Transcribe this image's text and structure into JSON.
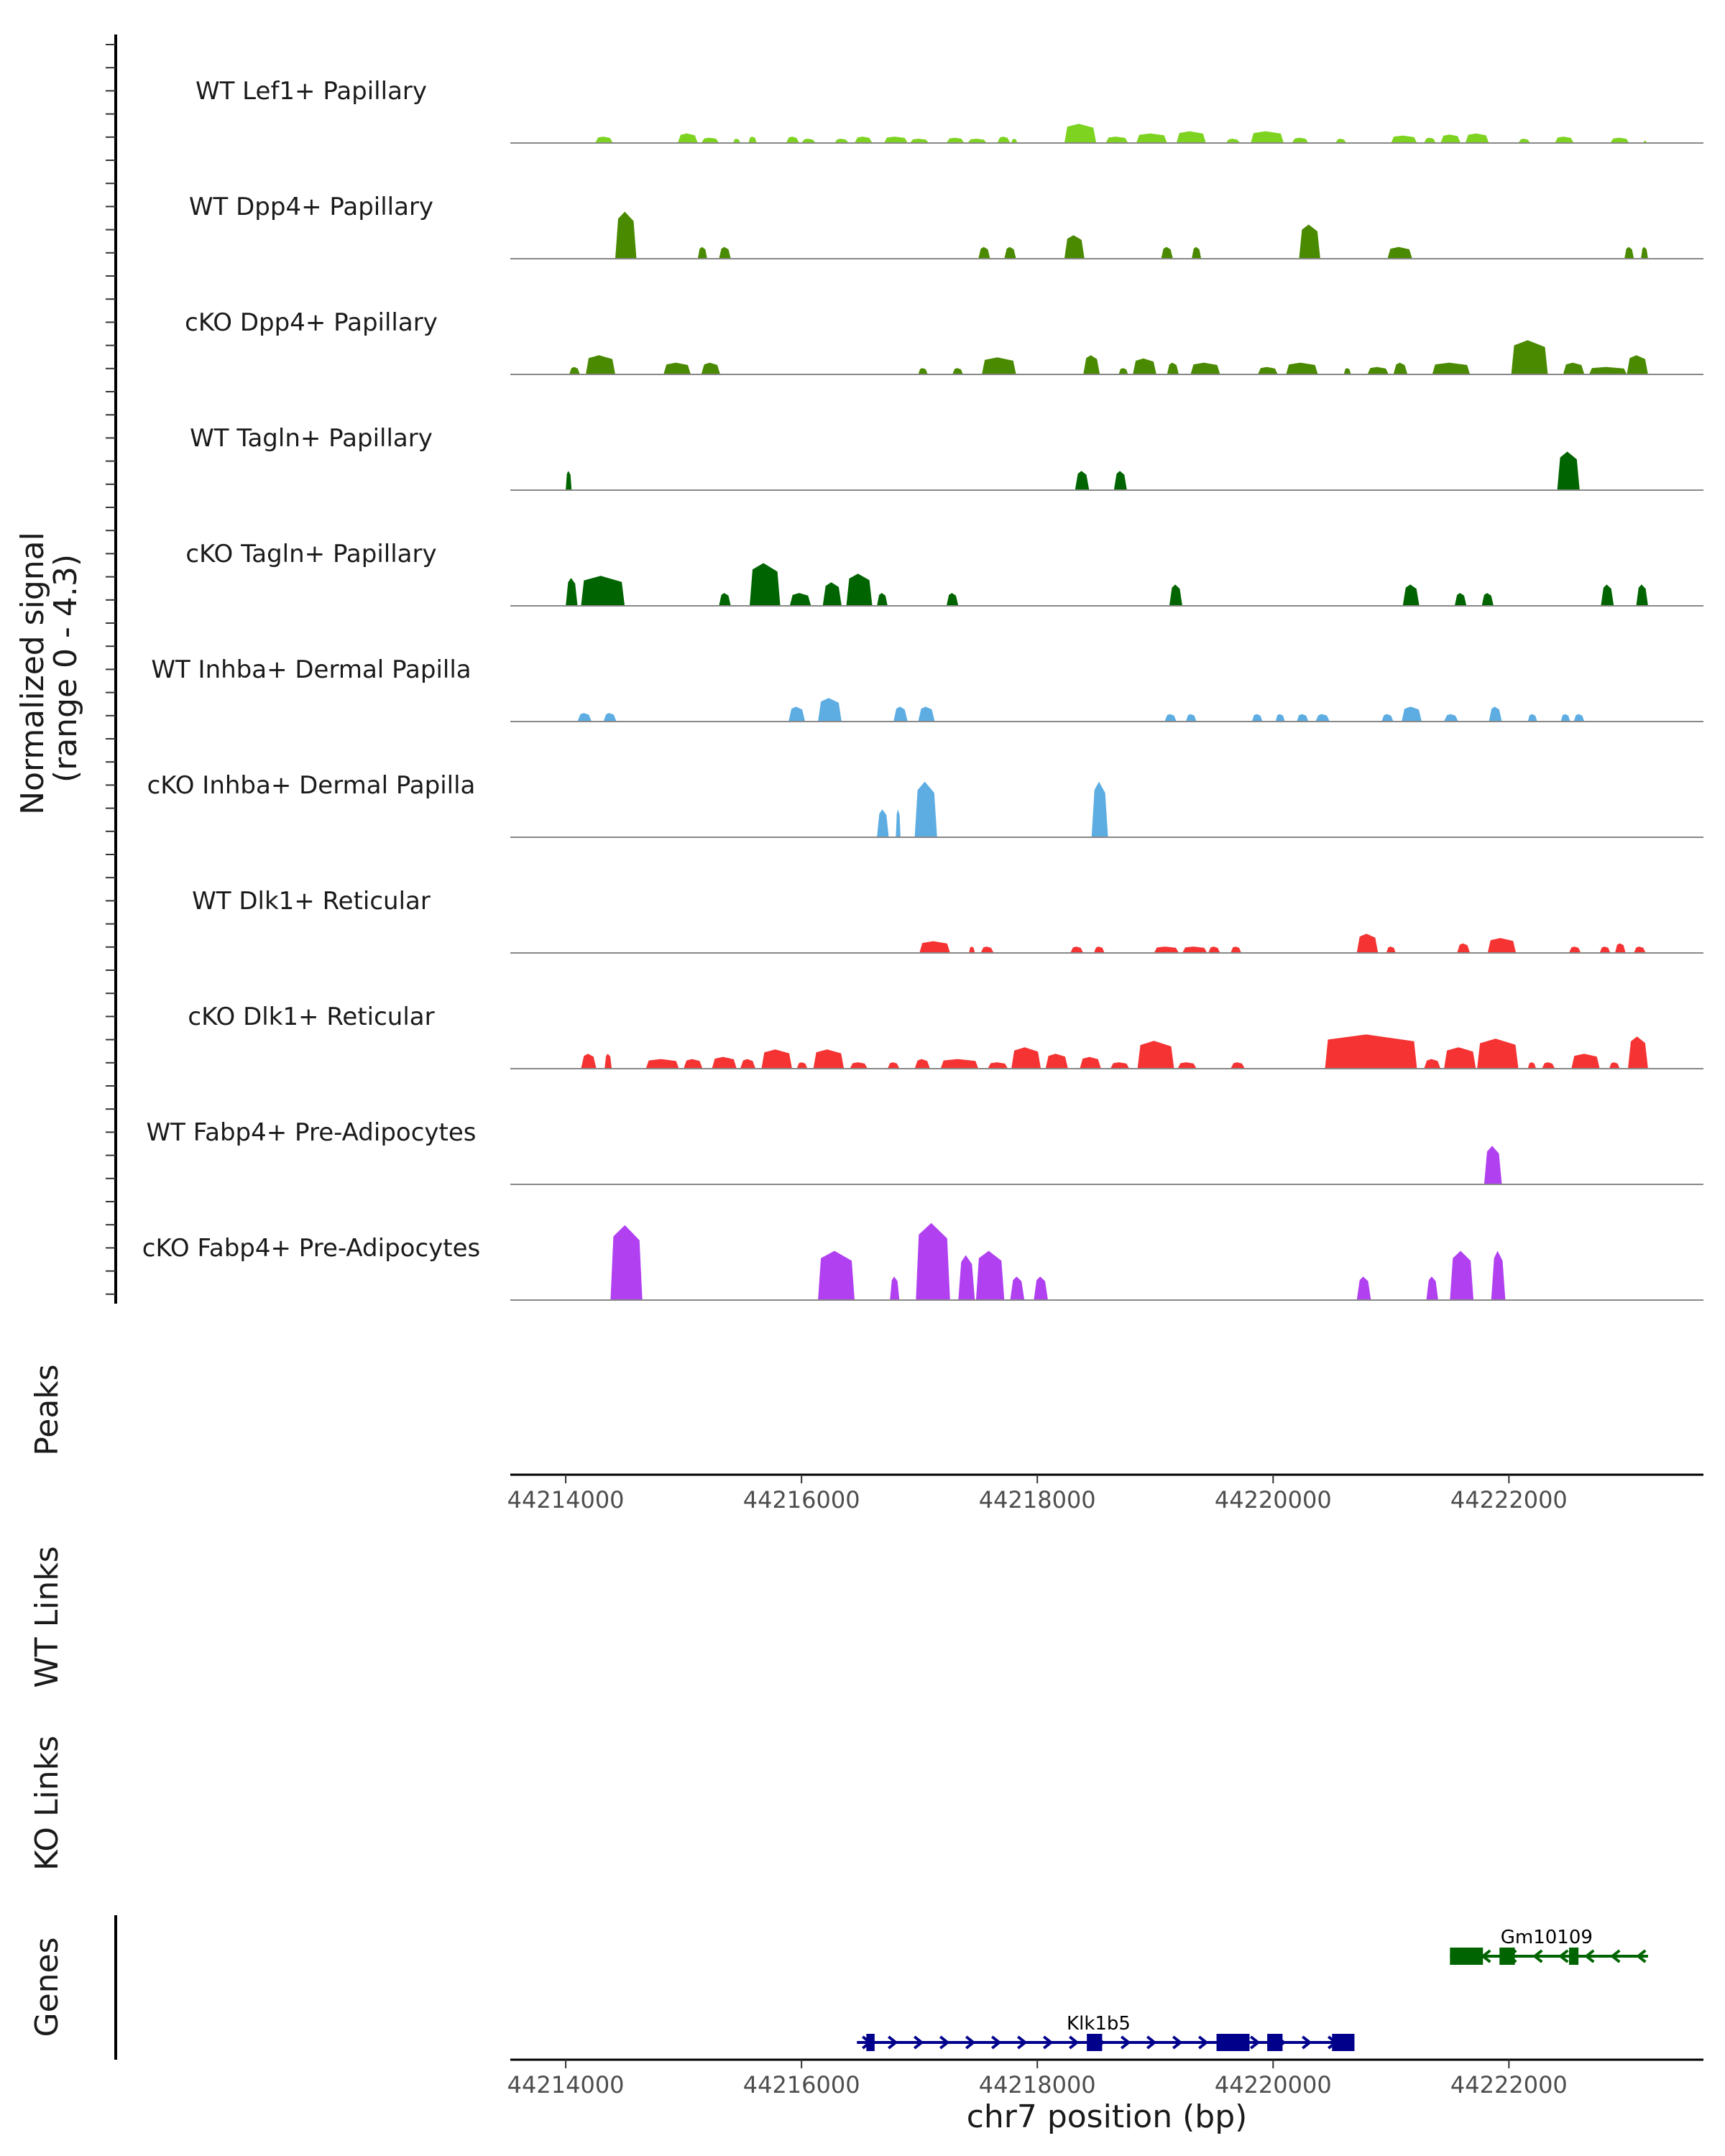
{
  "chart_data": {
    "type": "area",
    "title": "",
    "ylabel": "Normalized signal\n(range 0 - 4.3)",
    "ylabel_lines": [
      "Normalized signal",
      "(range 0 - 4.3)"
    ],
    "ylim": [
      0,
      4.3
    ],
    "xlabel": "chr7 position (bp)",
    "xlim": [
      44213530,
      44223650
    ],
    "x_ticks": [
      44214000,
      44216000,
      44218000,
      44220000,
      44222000
    ],
    "x_tick_labels": [
      "44214000",
      "44216000",
      "44218000",
      "44220000",
      "44222000"
    ],
    "panel_labels": {
      "peaks": "Peaks",
      "wt_links": "WT Links",
      "ko_links": "KO Links",
      "genes": "Genes"
    },
    "series": [
      {
        "name": "WT Lef1+ Papillary",
        "color": "#7ED321",
        "segments": [
          [
            44214250,
            44214400,
            0.3
          ],
          [
            44214950,
            44215120,
            0.45
          ],
          [
            44215150,
            44215300,
            0.25
          ],
          [
            44215420,
            44215480,
            0.2
          ],
          [
            44215550,
            44215620,
            0.3
          ],
          [
            44215870,
            44215980,
            0.3
          ],
          [
            44216000,
            44216120,
            0.2
          ],
          [
            44216280,
            44216400,
            0.2
          ],
          [
            44216450,
            44216600,
            0.3
          ],
          [
            44216700,
            44216900,
            0.3
          ],
          [
            44216920,
            44217080,
            0.2
          ],
          [
            44217230,
            44217380,
            0.25
          ],
          [
            44217410,
            44217570,
            0.2
          ],
          [
            44217660,
            44217770,
            0.3
          ],
          [
            44217780,
            44217830,
            0.2
          ],
          [
            44218230,
            44218500,
            0.9
          ],
          [
            44218580,
            44218770,
            0.3
          ],
          [
            44218840,
            44219100,
            0.45
          ],
          [
            44219180,
            44219430,
            0.55
          ],
          [
            44219600,
            44219720,
            0.2
          ],
          [
            44219810,
            44220090,
            0.55
          ],
          [
            44220160,
            44220300,
            0.25
          ],
          [
            44220530,
            44220620,
            0.2
          ],
          [
            44221000,
            44221220,
            0.35
          ],
          [
            44221280,
            44221380,
            0.25
          ],
          [
            44221420,
            44221590,
            0.4
          ],
          [
            44221630,
            44221830,
            0.45
          ],
          [
            44222080,
            44222180,
            0.2
          ],
          [
            44222390,
            44222550,
            0.3
          ],
          [
            44222860,
            44223020,
            0.25
          ],
          [
            44223140,
            44223170,
            0.1
          ]
        ]
      },
      {
        "name": "WT Dpp4+ Papillary",
        "color": "#4A8A00",
        "segments": [
          [
            44214420,
            44214600,
            2.2
          ],
          [
            44215120,
            44215200,
            0.55
          ],
          [
            44215300,
            44215400,
            0.55
          ],
          [
            44217500,
            44217600,
            0.55
          ],
          [
            44217720,
            44217820,
            0.55
          ],
          [
            44218230,
            44218400,
            1.1
          ],
          [
            44219050,
            44219150,
            0.55
          ],
          [
            44219310,
            44219390,
            0.55
          ],
          [
            44220220,
            44220400,
            1.6
          ],
          [
            44220970,
            44221180,
            0.55
          ],
          [
            44222980,
            44223060,
            0.55
          ],
          [
            44223120,
            44223180,
            0.55
          ]
        ]
      },
      {
        "name": "cKO Dpp4+ Papillary",
        "color": "#4A8A00",
        "segments": [
          [
            44214030,
            44214120,
            0.35
          ],
          [
            44214170,
            44214420,
            0.9
          ],
          [
            44214830,
            44215060,
            0.55
          ],
          [
            44215150,
            44215310,
            0.55
          ],
          [
            44216990,
            44217070,
            0.3
          ],
          [
            44217280,
            44217370,
            0.3
          ],
          [
            44217530,
            44217820,
            0.8
          ],
          [
            44218390,
            44218530,
            0.9
          ],
          [
            44218690,
            44218770,
            0.3
          ],
          [
            44218810,
            44219010,
            0.75
          ],
          [
            44219100,
            44219200,
            0.55
          ],
          [
            44219300,
            44219550,
            0.55
          ],
          [
            44219870,
            44220040,
            0.35
          ],
          [
            44220110,
            44220380,
            0.55
          ],
          [
            44220600,
            44220660,
            0.3
          ],
          [
            44220800,
            44220980,
            0.35
          ],
          [
            44221020,
            44221140,
            0.55
          ],
          [
            44221350,
            44221670,
            0.55
          ],
          [
            44222020,
            44222330,
            1.6
          ],
          [
            44222460,
            44222640,
            0.55
          ],
          [
            44222680,
            44223000,
            0.35
          ],
          [
            44223000,
            44223180,
            0.9
          ]
        ]
      },
      {
        "name": "WT Tagln+ Papillary",
        "color": "#006400",
        "segments": [
          [
            44214000,
            44214050,
            0.9
          ],
          [
            44218320,
            44218440,
            0.9
          ],
          [
            44218650,
            44218760,
            0.9
          ],
          [
            44222410,
            44222600,
            1.8
          ]
        ]
      },
      {
        "name": "cKO Tagln+ Papillary",
        "color": "#006400",
        "segments": [
          [
            44214000,
            44214100,
            1.3
          ],
          [
            44214130,
            44214500,
            1.4
          ],
          [
            44215300,
            44215400,
            0.6
          ],
          [
            44215560,
            44215820,
            2.0
          ],
          [
            44215900,
            44216080,
            0.6
          ],
          [
            44216180,
            44216340,
            1.1
          ],
          [
            44216380,
            44216600,
            1.5
          ],
          [
            44216640,
            44216730,
            0.6
          ],
          [
            44217230,
            44217330,
            0.6
          ],
          [
            44219120,
            44219230,
            1.0
          ],
          [
            44221100,
            44221240,
            1.0
          ],
          [
            44221540,
            44221640,
            0.6
          ],
          [
            44221770,
            44221870,
            0.6
          ],
          [
            44222780,
            44222890,
            1.0
          ],
          [
            44223080,
            44223180,
            1.0
          ]
        ]
      },
      {
        "name": "WT Inhba+ Dermal Papilla",
        "color": "#5DADE2",
        "segments": [
          [
            44214100,
            44214220,
            0.4
          ],
          [
            44214320,
            44214430,
            0.4
          ],
          [
            44215890,
            44216030,
            0.7
          ],
          [
            44216140,
            44216340,
            1.1
          ],
          [
            44216780,
            44216900,
            0.7
          ],
          [
            44216990,
            44217130,
            0.7
          ],
          [
            44219080,
            44219180,
            0.35
          ],
          [
            44219260,
            44219350,
            0.35
          ],
          [
            44219820,
            44219910,
            0.35
          ],
          [
            44220020,
            44220100,
            0.35
          ],
          [
            44220200,
            44220300,
            0.35
          ],
          [
            44220360,
            44220480,
            0.35
          ],
          [
            44220920,
            44221020,
            0.35
          ],
          [
            44221090,
            44221260,
            0.7
          ],
          [
            44221450,
            44221570,
            0.35
          ],
          [
            44221830,
            44221940,
            0.7
          ],
          [
            44222160,
            44222240,
            0.35
          ],
          [
            44222440,
            44222520,
            0.35
          ],
          [
            44222550,
            44222640,
            0.35
          ]
        ]
      },
      {
        "name": "cKO Inhba+ Dermal Papilla",
        "color": "#5DADE2",
        "segments": [
          [
            44216640,
            44216740,
            1.3
          ],
          [
            44216800,
            44216840,
            1.3
          ],
          [
            44216960,
            44217150,
            2.6
          ],
          [
            44218460,
            44218600,
            2.6
          ]
        ]
      },
      {
        "name": "WT Dlk1+ Reticular",
        "color": "#F53333",
        "segments": [
          [
            44217000,
            44217260,
            0.55
          ],
          [
            44217420,
            44217470,
            0.3
          ],
          [
            44217520,
            44217630,
            0.3
          ],
          [
            44218280,
            44218390,
            0.3
          ],
          [
            44218480,
            44218570,
            0.3
          ],
          [
            44218990,
            44219200,
            0.3
          ],
          [
            44219230,
            44219440,
            0.3
          ],
          [
            44219450,
            44219550,
            0.3
          ],
          [
            44219640,
            44219730,
            0.3
          ],
          [
            44220710,
            44220890,
            0.9
          ],
          [
            44220960,
            44221040,
            0.3
          ],
          [
            44221560,
            44221670,
            0.45
          ],
          [
            44221820,
            44222060,
            0.7
          ],
          [
            44222510,
            44222610,
            0.3
          ],
          [
            44222770,
            44222860,
            0.3
          ],
          [
            44222900,
            44222990,
            0.45
          ],
          [
            44223060,
            44223160,
            0.3
          ]
        ]
      },
      {
        "name": "cKO Dlk1+ Reticular",
        "color": "#F53333",
        "segments": [
          [
            44214130,
            44214260,
            0.7
          ],
          [
            44214330,
            44214390,
            0.7
          ],
          [
            44214680,
            44214960,
            0.45
          ],
          [
            44215000,
            44215160,
            0.45
          ],
          [
            44215240,
            44215450,
            0.55
          ],
          [
            44215480,
            44215610,
            0.45
          ],
          [
            44215660,
            44215920,
            0.9
          ],
          [
            44215960,
            44216050,
            0.3
          ],
          [
            44216100,
            44216360,
            0.9
          ],
          [
            44216410,
            44216560,
            0.3
          ],
          [
            44216730,
            44216830,
            0.3
          ],
          [
            44216960,
            44217090,
            0.45
          ],
          [
            44217180,
            44217500,
            0.45
          ],
          [
            44217580,
            44217750,
            0.3
          ],
          [
            44217780,
            44218030,
            1.0
          ],
          [
            44218070,
            44218260,
            0.7
          ],
          [
            44218360,
            44218540,
            0.55
          ],
          [
            44218620,
            44218780,
            0.3
          ],
          [
            44218850,
            44219160,
            1.3
          ],
          [
            44219190,
            44219350,
            0.3
          ],
          [
            44219640,
            44219760,
            0.3
          ],
          [
            44220440,
            44221220,
            1.6
          ],
          [
            44221280,
            44221420,
            0.45
          ],
          [
            44221450,
            44221720,
            1.0
          ],
          [
            44221730,
            44222080,
            1.4
          ],
          [
            44222160,
            44222230,
            0.3
          ],
          [
            44222280,
            44222390,
            0.3
          ],
          [
            44222530,
            44222770,
            0.7
          ],
          [
            44222850,
            44222940,
            0.3
          ],
          [
            44223010,
            44223180,
            1.5
          ]
        ]
      },
      {
        "name": "WT Fabp4+ Pre-Adipocytes",
        "color": "#B040F0",
        "segments": [
          [
            44221790,
            44221940,
            1.8
          ]
        ]
      },
      {
        "name": "cKO Fabp4+ Pre-Adipocytes",
        "color": "#B040F0",
        "segments": [
          [
            44214380,
            44214650,
            3.5
          ],
          [
            44216140,
            44216450,
            2.3
          ],
          [
            44216750,
            44216830,
            1.1
          ],
          [
            44216970,
            44217260,
            3.6
          ],
          [
            44217330,
            44217470,
            2.1
          ],
          [
            44217480,
            44217720,
            2.3
          ],
          [
            44217770,
            44217890,
            1.1
          ],
          [
            44217970,
            44218090,
            1.1
          ],
          [
            44220710,
            44220830,
            1.1
          ],
          [
            44221300,
            44221400,
            1.1
          ],
          [
            44221500,
            44221700,
            2.3
          ],
          [
            44221850,
            44221970,
            2.3
          ]
        ]
      }
    ],
    "genes": [
      {
        "name": "Gm10109",
        "strand": "-",
        "start": 44221500,
        "end": 44223180,
        "color": "#006400",
        "exons": [
          [
            44221500,
            44221780
          ],
          [
            44221920,
            44222050
          ],
          [
            44222510,
            44222590
          ]
        ]
      },
      {
        "name": "Klk1b5",
        "strand": "+",
        "start": 44216470,
        "end": 44220680,
        "color": "#00008B",
        "exons": [
          [
            44216550,
            44216620
          ],
          [
            44218420,
            44218550
          ],
          [
            44219520,
            44219800
          ],
          [
            44219950,
            44220080
          ],
          [
            44220500,
            44220690
          ]
        ]
      }
    ]
  }
}
